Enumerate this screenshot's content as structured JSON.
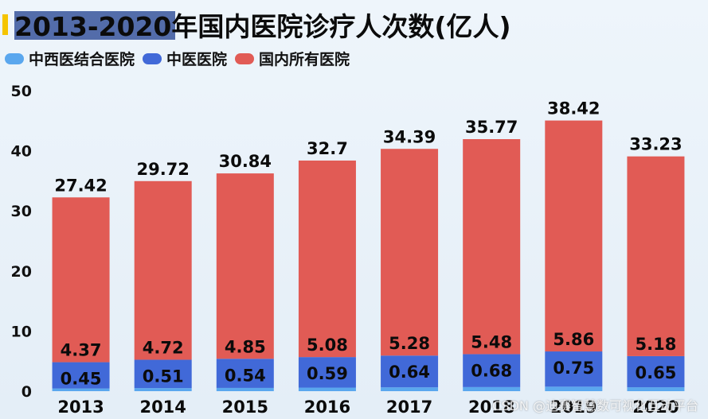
{
  "header": {
    "title": "2013-2020年国内医院诊疗人次数(亿人)"
  },
  "legend": [
    {
      "label": "中西医结合医院",
      "color": "#5aa7ee"
    },
    {
      "label": "中医医院",
      "color": "#4169d8"
    },
    {
      "label": "国内所有医院",
      "color": "#e15b55"
    }
  ],
  "watermark": "CSDN @迪赛智慧数可视化互动平台",
  "chart_data": {
    "type": "bar",
    "stacked": true,
    "categories": [
      "2013",
      "2014",
      "2015",
      "2016",
      "2017",
      "2018",
      "2019",
      "2020"
    ],
    "series": [
      {
        "name": "中西医结合医院",
        "color": "#5aa7ee",
        "values": [
          0.45,
          0.51,
          0.54,
          0.59,
          0.64,
          0.68,
          0.75,
          0.65
        ]
      },
      {
        "name": "中医医院",
        "color": "#4169d8",
        "values": [
          4.37,
          4.72,
          4.85,
          5.08,
          5.28,
          5.48,
          5.86,
          5.18
        ]
      },
      {
        "name": "国内所有医院",
        "color": "#e15b55",
        "values": [
          27.42,
          29.72,
          30.84,
          32.7,
          34.39,
          35.77,
          38.42,
          33.23
        ]
      }
    ],
    "yticks": [
      0,
      10,
      20,
      30,
      40,
      50
    ],
    "ylim": [
      0,
      50
    ],
    "grid": false,
    "legend_position": "top-left"
  }
}
